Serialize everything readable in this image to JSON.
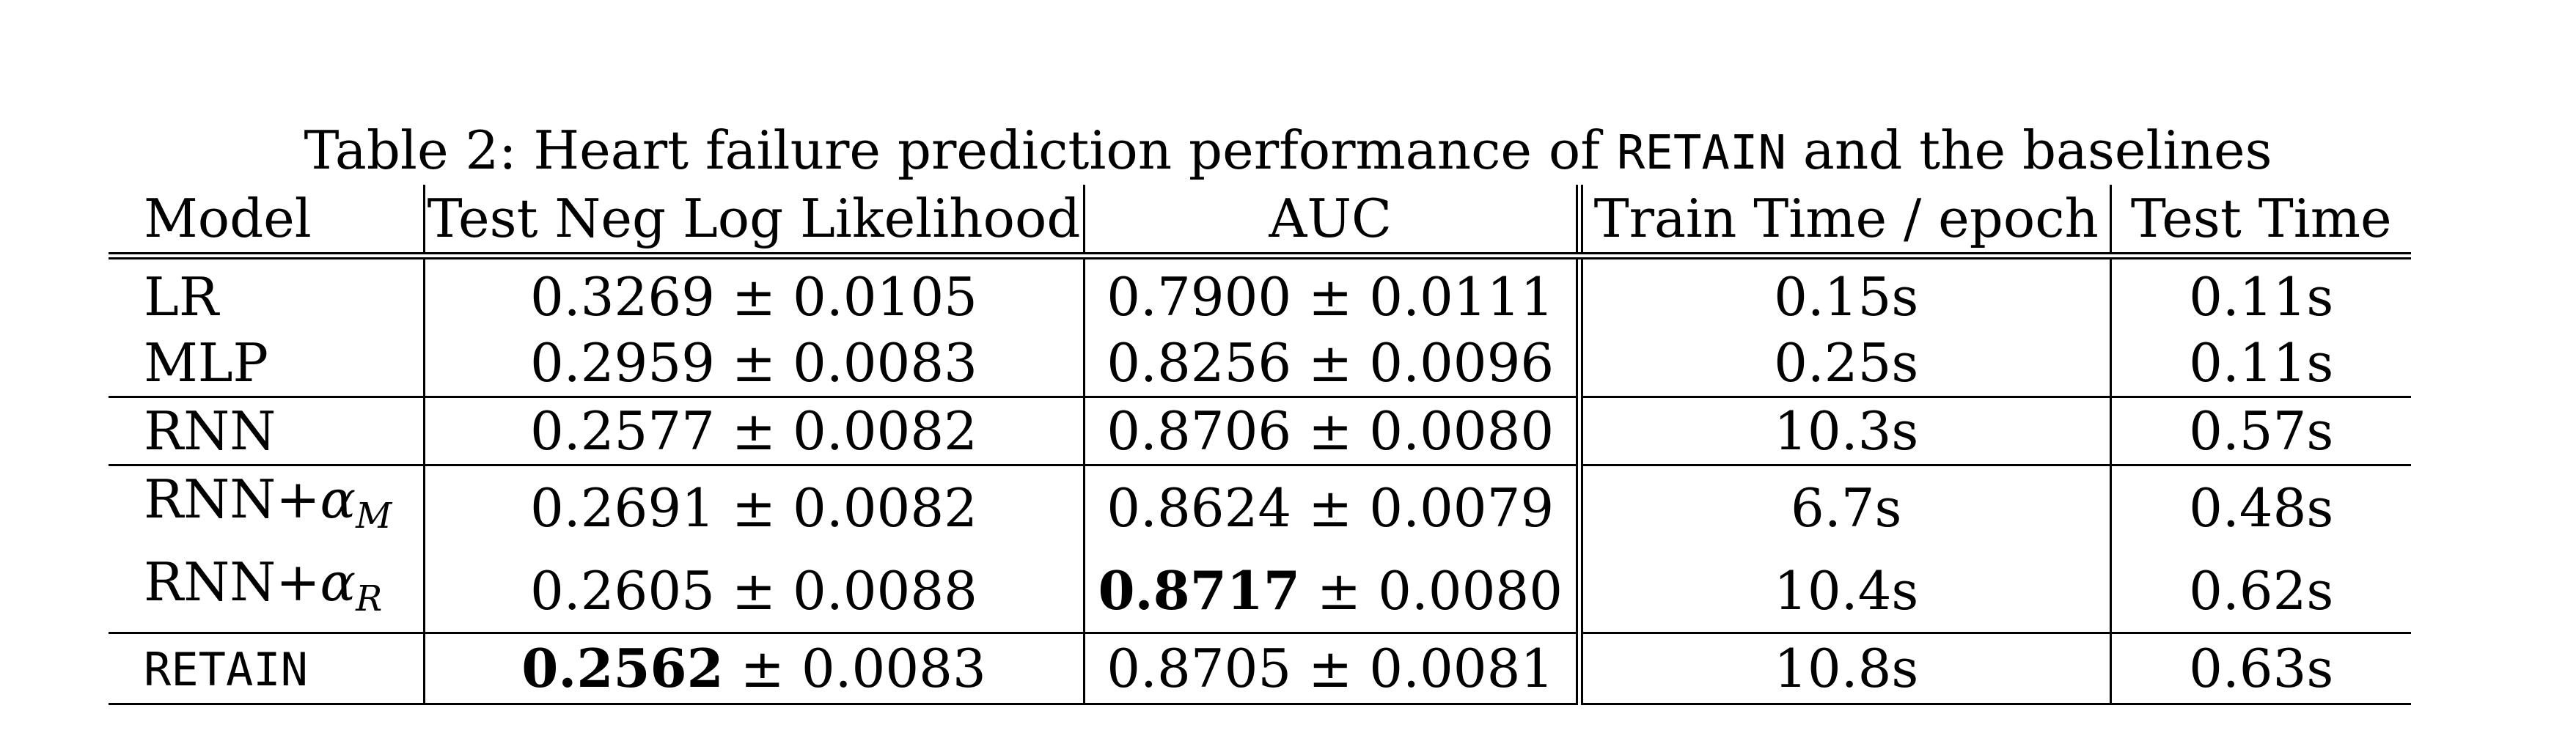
{
  "caption": {
    "prefix": "Table 2: Heart failure prediction performance of",
    "model_name": "RETAIN",
    "suffix": "and the baselines"
  },
  "headers": {
    "model": "Model",
    "nll": "Test Neg Log Likelihood",
    "auc": "AUC",
    "train_time": "Train Time / epoch",
    "test_time": "Test Time"
  },
  "pm": "±",
  "rows": [
    {
      "model": "LR",
      "nll_mean": "0.3269",
      "nll_std": "0.0105",
      "auc_mean": "0.7900",
      "auc_std": "0.0111",
      "train_time": "0.15s",
      "test_time": "0.11s"
    },
    {
      "model": "MLP",
      "nll_mean": "0.2959",
      "nll_std": "0.0083",
      "auc_mean": "0.8256",
      "auc_std": "0.0096",
      "train_time": "0.25s",
      "test_time": "0.11s"
    },
    {
      "model": "RNN",
      "nll_mean": "0.2577",
      "nll_std": "0.0082",
      "auc_mean": "0.8706",
      "auc_std": "0.0080",
      "train_time": "10.3s",
      "test_time": "0.57s"
    },
    {
      "model": "RNN+",
      "alpha": "α",
      "sub": "M",
      "nll_mean": "0.2691",
      "nll_std": "0.0082",
      "auc_mean": "0.8624",
      "auc_std": "0.0079",
      "train_time": "6.7s",
      "test_time": "0.48s"
    },
    {
      "model": "RNN+",
      "alpha": "α",
      "sub": "R",
      "nll_mean": "0.2605",
      "nll_std": "0.0088",
      "auc_mean": "0.8717",
      "auc_std": "0.0080",
      "train_time": "10.4s",
      "test_time": "0.62s"
    },
    {
      "model": "RETAIN",
      "nll_mean": "0.2562",
      "nll_std": "0.0083",
      "auc_mean": "0.8705",
      "auc_std": "0.0081",
      "train_time": "10.8s",
      "test_time": "0.63s"
    }
  ]
}
